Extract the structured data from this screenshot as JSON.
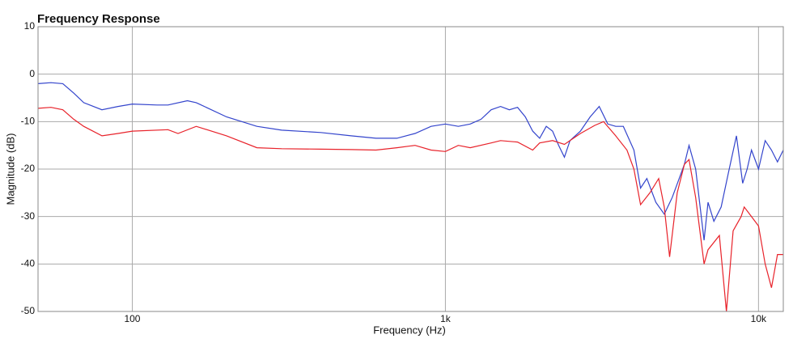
{
  "chart_data": {
    "type": "line",
    "title": "Frequency Response",
    "x_label": "Frequency (Hz)",
    "y_label": "Magnitude (dB)",
    "xscale": "log",
    "xlim": [
      50,
      12000
    ],
    "ylim": [
      -50,
      10
    ],
    "xticks": [
      100,
      {
        "value": 1000,
        "label": "1k"
      },
      {
        "value": 10000,
        "label": "10k"
      }
    ],
    "yticks": [
      -50,
      -40,
      -30,
      -20,
      -10,
      0,
      10
    ],
    "grid": true,
    "series": [
      {
        "color": "#3344cc",
        "x": [
          50,
          55,
          60,
          65,
          70,
          80,
          90,
          100,
          120,
          130,
          150,
          160,
          200,
          250,
          300,
          400,
          500,
          600,
          700,
          800,
          900,
          1000,
          1100,
          1200,
          1300,
          1400,
          1500,
          1600,
          1700,
          1800,
          1900,
          2000,
          2100,
          2200,
          2300,
          2400,
          2500,
          2700,
          2900,
          3100,
          3300,
          3500,
          3700,
          4000,
          4200,
          4400,
          4700,
          5000,
          5300,
          5800,
          6000,
          6300,
          6700,
          6900,
          7200,
          7600,
          8000,
          8500,
          8900,
          9200,
          9500,
          10000,
          10500,
          11000,
          11500,
          12000
        ],
        "values": [
          -2,
          -1.8,
          -2,
          -4,
          -6,
          -7.5,
          -6.8,
          -6.3,
          -6.5,
          -6.5,
          -5.6,
          -6,
          -9,
          -11,
          -11.8,
          -12.3,
          -13,
          -13.5,
          -13.5,
          -12.5,
          -11,
          -10.5,
          -11,
          -10.5,
          -9.5,
          -7.5,
          -6.8,
          -7.5,
          -7,
          -9,
          -12,
          -13.5,
          -11,
          -12,
          -15,
          -17.5,
          -14,
          -12,
          -9,
          -6.8,
          -10.5,
          -11,
          -11,
          -16,
          -24,
          -22,
          -27,
          -29.5,
          -26,
          -19,
          -15,
          -20,
          -35,
          -27,
          -31,
          -28,
          -21,
          -13,
          -23,
          -20,
          -16,
          -20,
          -14,
          -16,
          -18.5,
          -16
        ]
      },
      {
        "color": "#e8222a",
        "x": [
          50,
          55,
          60,
          65,
          70,
          80,
          90,
          100,
          130,
          140,
          160,
          200,
          250,
          300,
          400,
          500,
          600,
          700,
          800,
          900,
          1000,
          1100,
          1200,
          1400,
          1500,
          1700,
          1900,
          2000,
          2200,
          2400,
          2700,
          3000,
          3200,
          3500,
          3800,
          4000,
          4200,
          4500,
          4800,
          5000,
          5200,
          5500,
          5800,
          6000,
          6300,
          6700,
          6900,
          7500,
          7900,
          8300,
          8800,
          9000,
          9500,
          10000,
          10500,
          11000,
          11500,
          12000
        ],
        "values": [
          -7.2,
          -7,
          -7.5,
          -9.5,
          -11,
          -13,
          -12.5,
          -12,
          -11.7,
          -12.5,
          -11,
          -13,
          -15.5,
          -15.7,
          -15.8,
          -15.9,
          -16,
          -15.5,
          -15,
          -16,
          -16.3,
          -15,
          -15.5,
          -14.5,
          -14,
          -14.3,
          -16,
          -14.5,
          -14,
          -14.8,
          -12.5,
          -10.8,
          -10,
          -13,
          -16,
          -20,
          -27.5,
          -25,
          -22,
          -28,
          -38.5,
          -25,
          -19,
          -18,
          -26,
          -40,
          -37,
          -34,
          -50,
          -33,
          -30,
          -28,
          -30,
          -32,
          -40,
          -45,
          -38,
          -38
        ]
      }
    ]
  }
}
